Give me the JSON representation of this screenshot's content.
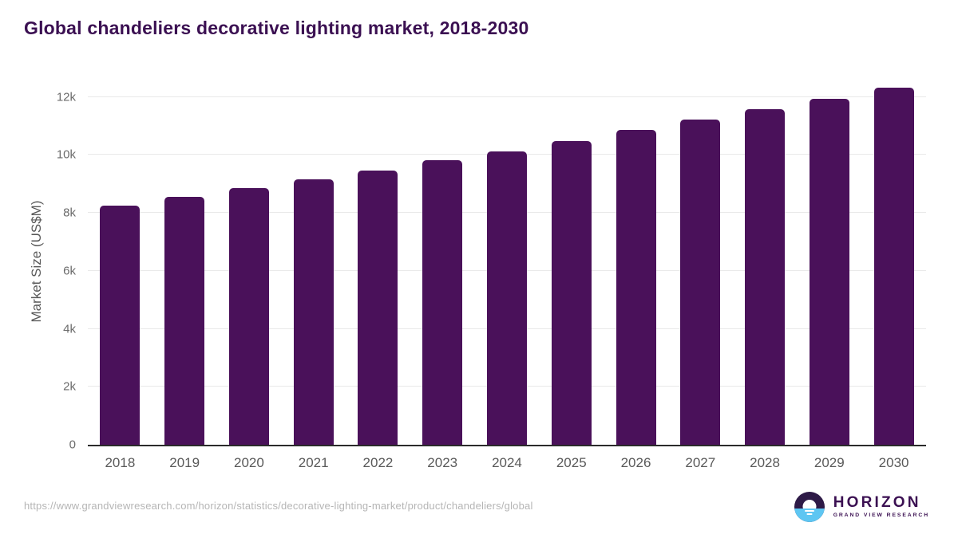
{
  "page": {
    "title": "Global chandeliers decorative lighting market, 2018-2030"
  },
  "chart_data": {
    "type": "bar",
    "title": "Global chandeliers decorative lighting market, 2018-2030",
    "xlabel": "",
    "ylabel": "Market Size (US$M)",
    "categories": [
      "2018",
      "2019",
      "2020",
      "2021",
      "2022",
      "2023",
      "2024",
      "2025",
      "2026",
      "2027",
      "2028",
      "2029",
      "2030"
    ],
    "values": [
      8240,
      8540,
      8860,
      9160,
      9460,
      9810,
      10130,
      10490,
      10860,
      11230,
      11580,
      11940,
      12330
    ],
    "unit": "US$M",
    "ylim": [
      0,
      12650
    ],
    "yticks": [
      {
        "value": 0,
        "label": "0"
      },
      {
        "value": 2000,
        "label": "2k"
      },
      {
        "value": 4000,
        "label": "4k"
      },
      {
        "value": 6000,
        "label": "6k"
      },
      {
        "value": 8000,
        "label": "8k"
      },
      {
        "value": 10000,
        "label": "10k"
      },
      {
        "value": 12000,
        "label": "12k"
      }
    ],
    "grid": true,
    "legend": "none",
    "bar_color": "#4a115a"
  },
  "footer": {
    "source_url": "https://www.grandviewresearch.com/horizon/statistics/decorative-lighting-market/product/chandeliers/global",
    "logo": {
      "title": "HORIZON",
      "subtitle": "GRAND VIEW RESEARCH"
    }
  },
  "colors": {
    "bar": "#4a115a",
    "title_text": "#3b1052",
    "axis_text": "#595959",
    "tick_text": "#6b6b6b",
    "gridline": "#e9e9e9",
    "axis_line": "#2b2b2b",
    "url_text": "#b5b5b5",
    "logo_dark": "#2e1a47",
    "logo_blue": "#5ec6f2"
  }
}
